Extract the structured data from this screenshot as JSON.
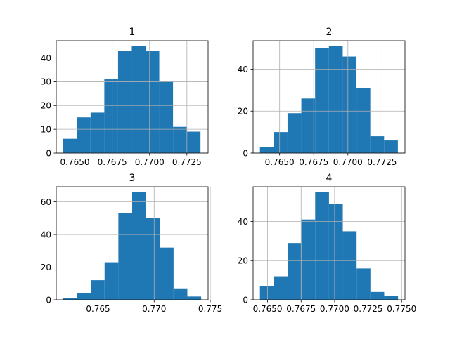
{
  "colors": {
    "bar": "#1f77b4",
    "grid": "#b0b0b0",
    "axis": "#000000",
    "background": "#ffffff"
  },
  "chart_data": [
    {
      "type": "bar",
      "title": "1",
      "grid": true,
      "xlim": [
        0.76375,
        0.77392
      ],
      "ylim": [
        0,
        47.25
      ],
      "x_ticks": [
        0.765,
        0.7675,
        0.77,
        0.7725
      ],
      "x_tick_labels": [
        "0.7650",
        "0.7675",
        "0.7700",
        "0.7725"
      ],
      "y_ticks": [
        0,
        10,
        20,
        30,
        40
      ],
      "y_tick_labels": [
        "0",
        "10",
        "20",
        "30",
        "40"
      ],
      "bin_edges": [
        0.76421,
        0.76513,
        0.76605,
        0.76697,
        0.76789,
        0.76881,
        0.76973,
        0.77065,
        0.77157,
        0.77249,
        0.77341
      ],
      "counts": [
        6,
        15,
        17,
        31,
        43,
        45,
        43,
        30,
        11,
        9
      ]
    },
    {
      "type": "bar",
      "title": "2",
      "grid": true,
      "xlim": [
        0.76306,
        0.77418
      ],
      "ylim": [
        0,
        53.55
      ],
      "x_ticks": [
        0.765,
        0.7675,
        0.77,
        0.7725
      ],
      "x_tick_labels": [
        "0.7650",
        "0.7675",
        "0.7700",
        "0.7725"
      ],
      "y_ticks": [
        0,
        20,
        40
      ],
      "y_tick_labels": [
        "0",
        "20",
        "40"
      ],
      "bin_edges": [
        0.76356,
        0.76457,
        0.76558,
        0.76659,
        0.7676,
        0.76861,
        0.76962,
        0.77063,
        0.77164,
        0.77265,
        0.77366
      ],
      "counts": [
        3,
        10,
        19,
        26,
        50,
        51,
        46,
        31,
        8,
        6
      ]
    },
    {
      "type": "bar",
      "title": "3",
      "grid": true,
      "xlim": [
        0.76127,
        0.77481
      ],
      "ylim": [
        0,
        69.3
      ],
      "x_ticks": [
        0.765,
        0.77,
        0.775
      ],
      "x_tick_labels": [
        "0.765",
        "0.770",
        "0.775"
      ],
      "y_ticks": [
        0,
        20,
        40,
        60
      ],
      "y_tick_labels": [
        "0",
        "20",
        "40",
        "60"
      ],
      "bin_edges": [
        0.76189,
        0.76312,
        0.76435,
        0.76558,
        0.76681,
        0.76804,
        0.76927,
        0.7705,
        0.77173,
        0.77296,
        0.77419
      ],
      "counts": [
        1,
        4,
        12,
        23,
        53,
        66,
        50,
        32,
        7,
        2
      ]
    },
    {
      "type": "bar",
      "title": "4",
      "grid": true,
      "xlim": [
        0.76392,
        0.77525
      ],
      "ylim": [
        0,
        57.75
      ],
      "x_ticks": [
        0.765,
        0.7675,
        0.77,
        0.7725,
        0.775
      ],
      "x_tick_labels": [
        "0.7650",
        "0.7675",
        "0.7700",
        "0.7725",
        "0.7750"
      ],
      "y_ticks": [
        0,
        20,
        40
      ],
      "y_tick_labels": [
        "0",
        "20",
        "40"
      ],
      "bin_edges": [
        0.76443,
        0.76546,
        0.76649,
        0.76752,
        0.76855,
        0.76958,
        0.77061,
        0.77164,
        0.77267,
        0.7737,
        0.77473
      ],
      "counts": [
        7,
        12,
        29,
        41,
        55,
        49,
        35,
        16,
        4,
        2
      ]
    }
  ]
}
